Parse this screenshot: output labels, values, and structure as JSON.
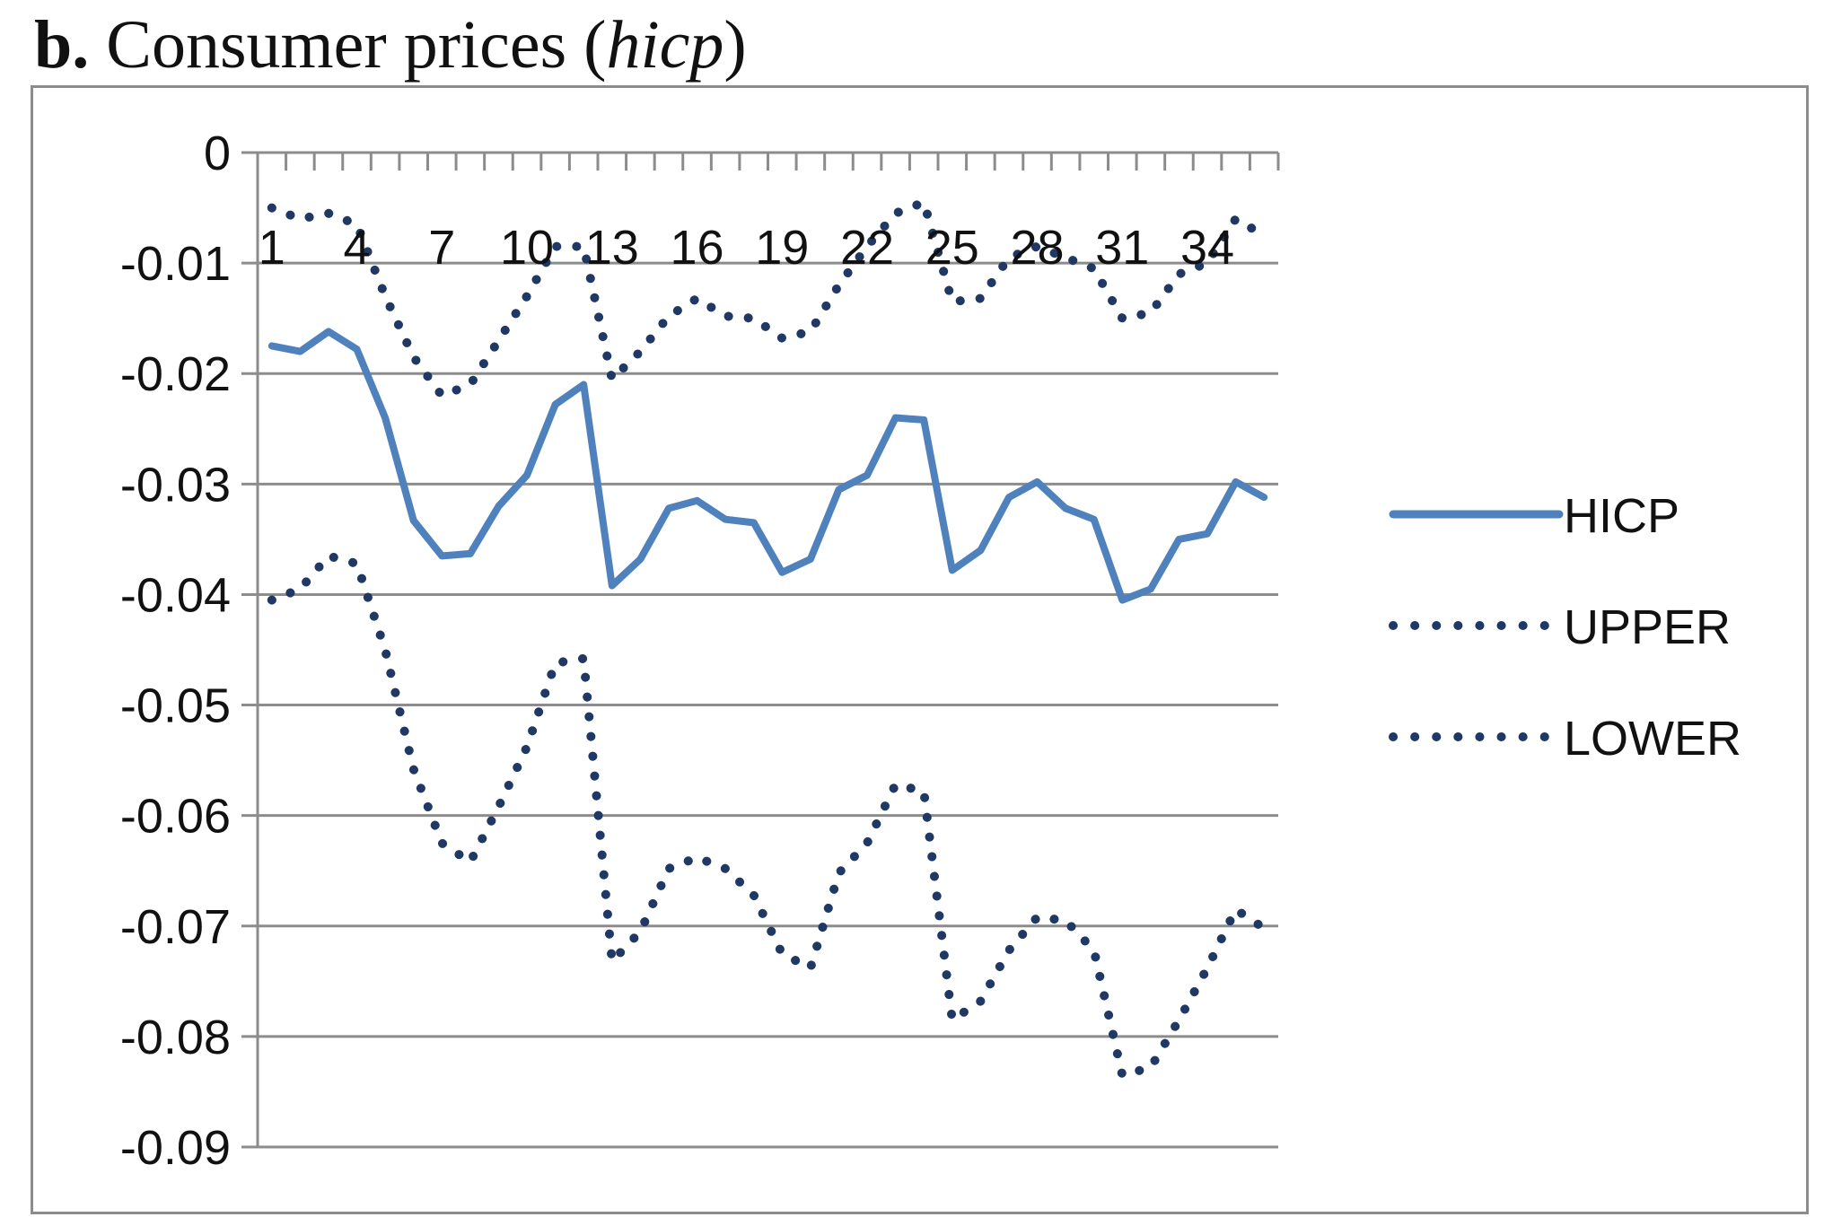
{
  "figure": {
    "title_bold": "b.",
    "title_main": " Consumer prices (",
    "title_italic": "hicp",
    "title_end": ")"
  },
  "chart_data": {
    "type": "line",
    "title": "b. Consumer prices (hicp)",
    "xlabel": "",
    "ylabel": "",
    "x": [
      1,
      2,
      3,
      4,
      5,
      6,
      7,
      8,
      9,
      10,
      11,
      12,
      13,
      14,
      15,
      16,
      17,
      18,
      19,
      20,
      21,
      22,
      23,
      24,
      25,
      26,
      27,
      28,
      29,
      30,
      31,
      32,
      33,
      34,
      35,
      36
    ],
    "x_tick_labels": [
      "1",
      "4",
      "7",
      "10",
      "13",
      "16",
      "19",
      "22",
      "25",
      "28",
      "31",
      "34"
    ],
    "y_ticks": [
      "0",
      "-0.01",
      "-0.02",
      "-0.03",
      "-0.04",
      "-0.05",
      "-0.06",
      "-0.07",
      "-0.08",
      "-0.09"
    ],
    "ylim": [
      -0.09,
      0
    ],
    "grid": true,
    "legend_position": "right",
    "series": [
      {
        "name": "HICP",
        "style": "solid",
        "color": "#4f81bd",
        "values": [
          -0.0175,
          -0.018,
          -0.0162,
          -0.0178,
          -0.024,
          -0.0333,
          -0.0365,
          -0.0363,
          -0.032,
          -0.0292,
          -0.0228,
          -0.021,
          -0.0392,
          -0.0368,
          -0.0322,
          -0.0315,
          -0.0332,
          -0.0335,
          -0.038,
          -0.0368,
          -0.0305,
          -0.0292,
          -0.024,
          -0.0242,
          -0.0378,
          -0.036,
          -0.0312,
          -0.0298,
          -0.0322,
          -0.0332,
          -0.0405,
          -0.0395,
          -0.035,
          -0.0345,
          -0.0298,
          -0.0312
        ]
      },
      {
        "name": "UPPER",
        "style": "dotted",
        "color": "#1f3864",
        "values": [
          -0.005,
          -0.006,
          -0.0055,
          -0.0065,
          -0.013,
          -0.0185,
          -0.022,
          -0.021,
          -0.017,
          -0.013,
          -0.0085,
          -0.0085,
          -0.0205,
          -0.018,
          -0.0148,
          -0.0132,
          -0.0148,
          -0.015,
          -0.0168,
          -0.0162,
          -0.012,
          -0.0085,
          -0.0055,
          -0.0045,
          -0.0135,
          -0.0132,
          -0.0095,
          -0.0085,
          -0.0095,
          -0.0105,
          -0.015,
          -0.0145,
          -0.011,
          -0.01,
          -0.006,
          -0.0075
        ]
      },
      {
        "name": "LOWER",
        "style": "dotted",
        "color": "#1f3864",
        "values": [
          -0.0405,
          -0.0395,
          -0.0365,
          -0.0372,
          -0.045,
          -0.0558,
          -0.0625,
          -0.0642,
          -0.0592,
          -0.0538,
          -0.0462,
          -0.0458,
          -0.0732,
          -0.0705,
          -0.0648,
          -0.0638,
          -0.0648,
          -0.0672,
          -0.0725,
          -0.0738,
          -0.0652,
          -0.0625,
          -0.0572,
          -0.0578,
          -0.0785,
          -0.0768,
          -0.0722,
          -0.0692,
          -0.0695,
          -0.0722,
          -0.0835,
          -0.0828,
          -0.0785,
          -0.0738,
          -0.0685,
          -0.0702
        ]
      }
    ]
  }
}
